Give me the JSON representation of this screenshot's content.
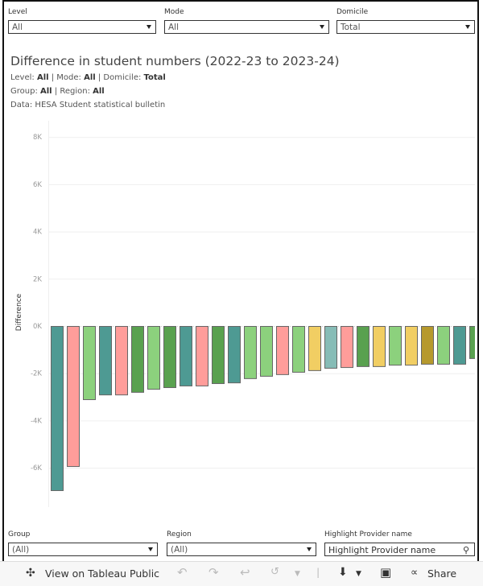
{
  "filters_top": [
    {
      "label": "Level",
      "value": "All"
    },
    {
      "label": "Mode",
      "value": "All"
    },
    {
      "label": "Domicile",
      "value": "Total"
    }
  ],
  "header": {
    "title": "Difference in student numbers (2022-23 to 2023-24)",
    "line1": {
      "level_label": "Level: ",
      "level": "All",
      "sep1": " | Mode: ",
      "mode": "All",
      "sep2": " | Domicile: ",
      "domicile": "Total"
    },
    "line2": {
      "group_label": "Group: ",
      "group": "All",
      "sep": " | Region: ",
      "region": "All"
    },
    "line3": "Data: HESA Student statistical bulletin"
  },
  "filters_bottom": [
    {
      "label": "Group",
      "value": "(All)"
    },
    {
      "label": "Region",
      "value": "(All)"
    },
    {
      "label": "Highlight Provider name",
      "placeholder": "Highlight Provider name"
    }
  ],
  "toolbar": {
    "view_on_tableau": "View on Tableau Public",
    "share": "Share"
  },
  "chart_data": {
    "type": "bar",
    "title": "Difference in student numbers (2022-23 to 2023-24)",
    "xlabel": "",
    "ylabel": "Difference",
    "ylim": [
      -7500,
      8800
    ],
    "yticks": [
      8000,
      6000,
      4000,
      2000,
      0,
      -2000,
      -4000,
      -6000
    ],
    "ytick_labels": [
      "8K",
      "6K",
      "4K",
      "2K",
      "0K",
      "-2K",
      "-4K",
      "-6K"
    ],
    "grid": true,
    "legend": "none",
    "values": [
      -6950,
      -5930,
      -3100,
      -2900,
      -2900,
      -2790,
      -2660,
      -2590,
      -2520,
      -2520,
      -2420,
      -2390,
      -2210,
      -2110,
      -2040,
      -1940,
      -1870,
      -1770,
      -1740,
      -1700,
      -1700,
      -1640,
      -1640,
      -1600,
      -1600,
      -1600,
      -1360
    ],
    "colors": [
      "#4e9a93",
      "#ff9d9a",
      "#8cd17d",
      "#4e9a93",
      "#ff9d9a",
      "#59a14f",
      "#8cd17d",
      "#59a14f",
      "#4e9a93",
      "#ff9d9a",
      "#59a14f",
      "#4e9a93",
      "#8cd17d",
      "#8cd17d",
      "#ff9d9a",
      "#8cd17d",
      "#f1ce63",
      "#86bcb6",
      "#ff9d9a",
      "#59a14f",
      "#f1ce63",
      "#8cd17d",
      "#f1ce63",
      "#b6992d",
      "#8cd17d",
      "#4e9a93",
      "#59a14f"
    ]
  }
}
